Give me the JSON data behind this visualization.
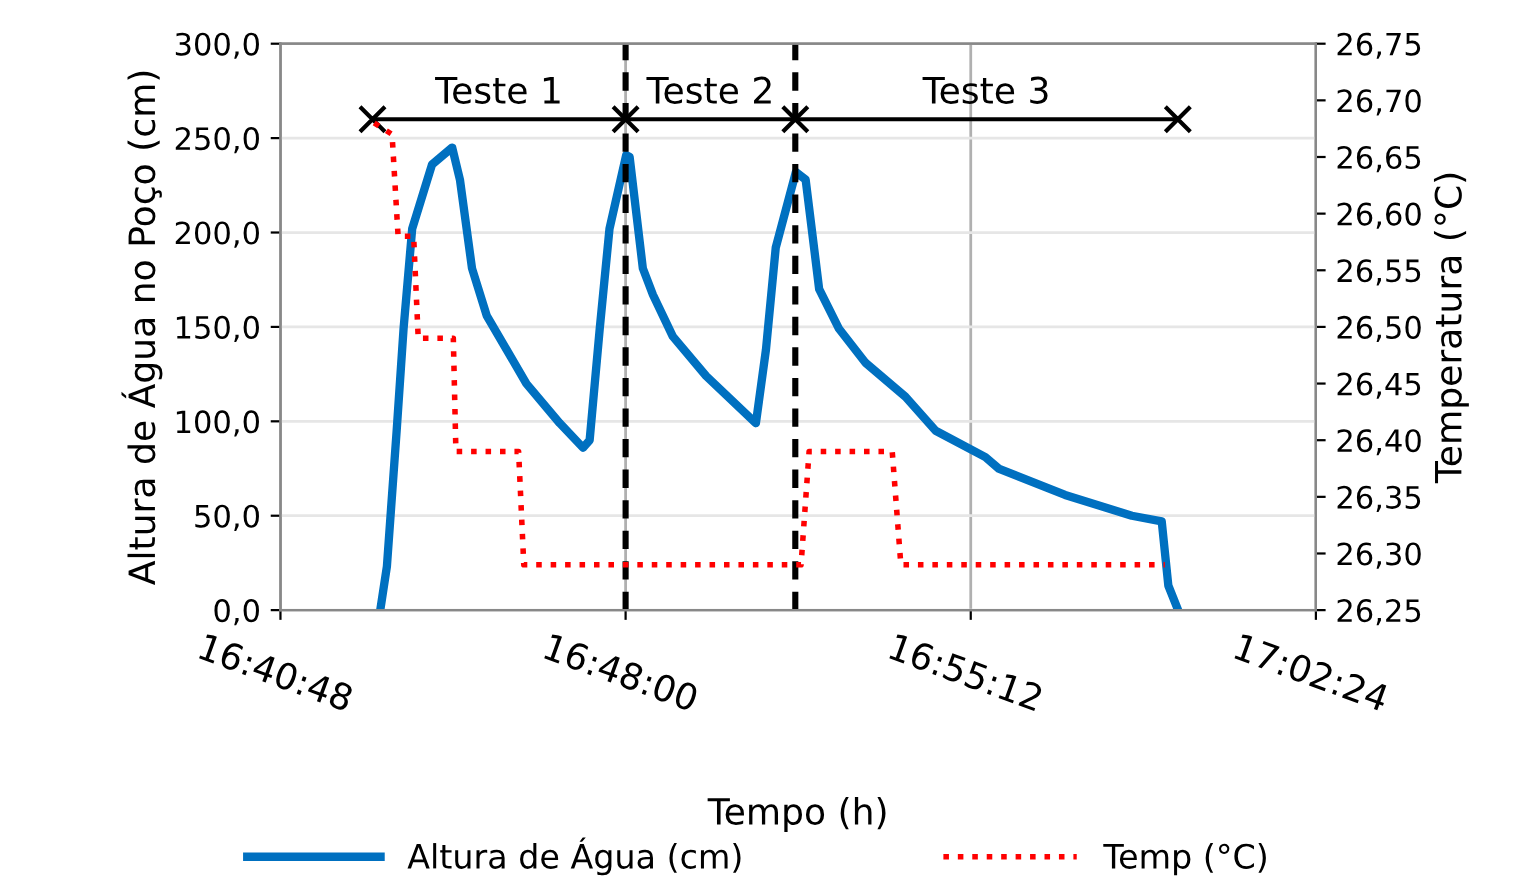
{
  "chart_data": {
    "type": "line",
    "xlabel": "Tempo (h)",
    "ylabel": "Altura de Água no Poço (cm)",
    "y2label": "Temperatura (°C)",
    "xlim": [
      16.68,
      17.04
    ],
    "xticks": [
      {
        "value": 16.68,
        "label": "16:40:48"
      },
      {
        "value": 16.8,
        "label": "16:48:00"
      },
      {
        "value": 16.92,
        "label": "16:55:12"
      },
      {
        "value": 17.04,
        "label": "17:02:24"
      }
    ],
    "ylim": [
      0,
      300
    ],
    "yticks": [
      {
        "value": 0,
        "label": "0,0"
      },
      {
        "value": 50,
        "label": "50,0"
      },
      {
        "value": 100,
        "label": "100,0"
      },
      {
        "value": 150,
        "label": "150,0"
      },
      {
        "value": 200,
        "label": "200,0"
      },
      {
        "value": 250,
        "label": "250,0"
      },
      {
        "value": 300,
        "label": "300,0"
      }
    ],
    "y2lim": [
      26.25,
      26.75
    ],
    "y2ticks": [
      {
        "value": 26.25,
        "label": "26,25"
      },
      {
        "value": 26.3,
        "label": "26,30"
      },
      {
        "value": 26.35,
        "label": "26,35"
      },
      {
        "value": 26.4,
        "label": "26,40"
      },
      {
        "value": 26.45,
        "label": "26,45"
      },
      {
        "value": 26.5,
        "label": "26,50"
      },
      {
        "value": 26.55,
        "label": "26,55"
      },
      {
        "value": 26.6,
        "label": "26,60"
      },
      {
        "value": 26.65,
        "label": "26,65"
      },
      {
        "value": 26.7,
        "label": "26,70"
      },
      {
        "value": 26.75,
        "label": "26,75"
      }
    ],
    "series": [
      {
        "name": "Altura de Água (cm)",
        "color": "#0070c0",
        "line_style": "solid",
        "marker": "none",
        "x": [
          16.7147,
          16.717,
          16.7204,
          16.7228,
          16.7258,
          16.7327,
          16.7397,
          16.7424,
          16.7466,
          16.7517,
          16.7655,
          16.7771,
          16.7852,
          16.7875,
          16.791,
          16.7944,
          16.8002,
          16.8014,
          16.806,
          16.8095,
          16.8164,
          16.828,
          16.8453,
          16.8488,
          16.8522,
          16.8592,
          16.8626,
          16.8673,
          16.8742,
          16.8834,
          16.8973,
          16.9078,
          16.9251,
          16.9297,
          16.9528,
          16.976,
          16.9864,
          16.9887,
          16.9921
        ],
        "values": [
          0,
          23,
          95,
          149,
          202,
          236,
          245,
          228,
          181,
          156,
          120,
          99,
          86,
          90,
          149,
          202,
          241,
          240,
          181,
          167,
          145,
          124,
          99,
          138,
          192,
          232,
          228,
          170,
          149,
          131,
          113,
          95,
          81,
          75,
          61,
          50,
          47,
          13,
          0
        ]
      },
      {
        "name": "Temp (°C)",
        "color": "#ff0000",
        "axis": "y2",
        "line_style": "dotted",
        "marker": "none",
        "x": [
          16.7126,
          16.7188,
          16.7209,
          16.7263,
          16.7279,
          16.7401,
          16.741,
          16.7628,
          16.7646,
          16.861,
          16.8638,
          16.8927,
          16.8957,
          16.9875
        ],
        "values": [
          26.68,
          26.67,
          26.58,
          26.58,
          26.49,
          26.49,
          26.39,
          26.39,
          26.29,
          26.29,
          26.39,
          26.39,
          26.29,
          26.29
        ]
      },
      {
        "color": "#000000",
        "line_style": "solid",
        "marker": "cross",
        "x": [
          16.712,
          16.8,
          16.859,
          16.992
        ],
        "values": [
          260,
          260,
          260,
          260
        ]
      }
    ],
    "ref_lines": [
      {
        "axis": "x",
        "value": 16.8,
        "color": "#000000",
        "line_style": "dashed"
      },
      {
        "axis": "x",
        "value": 16.859,
        "color": "#000000",
        "line_style": "dashed"
      }
    ],
    "annotations": [
      "Teste 1",
      "Teste 2",
      "Teste 3"
    ],
    "grid": true,
    "legend": "bottom"
  }
}
